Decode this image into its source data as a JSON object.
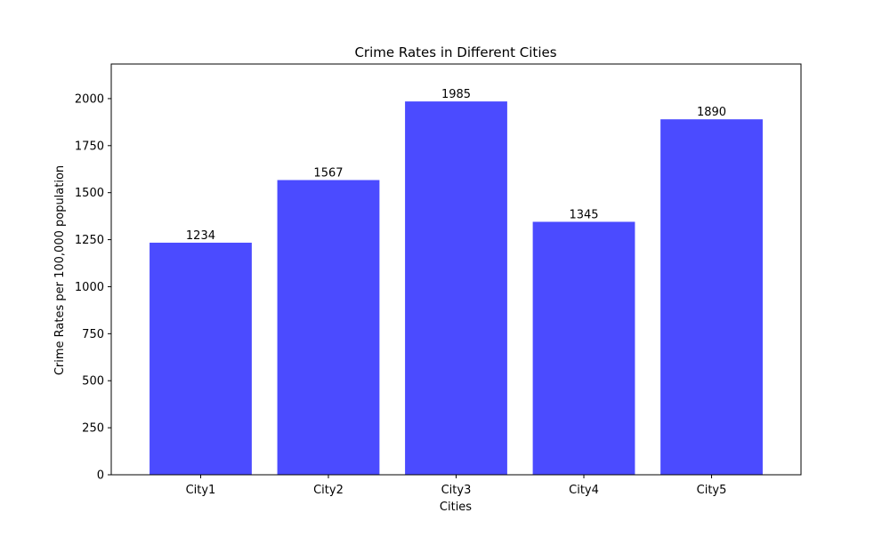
{
  "chart_data": {
    "type": "bar",
    "title": "Crime Rates in Different Cities",
    "xlabel": "Cities",
    "ylabel": "Crime Rates per 100,000 population",
    "categories": [
      "City1",
      "City2",
      "City3",
      "City4",
      "City5"
    ],
    "values": [
      1234,
      1567,
      1985,
      1345,
      1890
    ],
    "data_labels": [
      "1234",
      "1567",
      "1985",
      "1345",
      "1890"
    ],
    "yticks": [
      0,
      250,
      500,
      750,
      1000,
      1250,
      1500,
      1750,
      2000
    ],
    "ytick_labels": [
      "0",
      "250",
      "500",
      "750",
      "1000",
      "1250",
      "1500",
      "1750",
      "2000"
    ],
    "ylim": [
      0,
      2184
    ],
    "grid": false,
    "legend": "none",
    "bar_color": "#4b4bff"
  }
}
